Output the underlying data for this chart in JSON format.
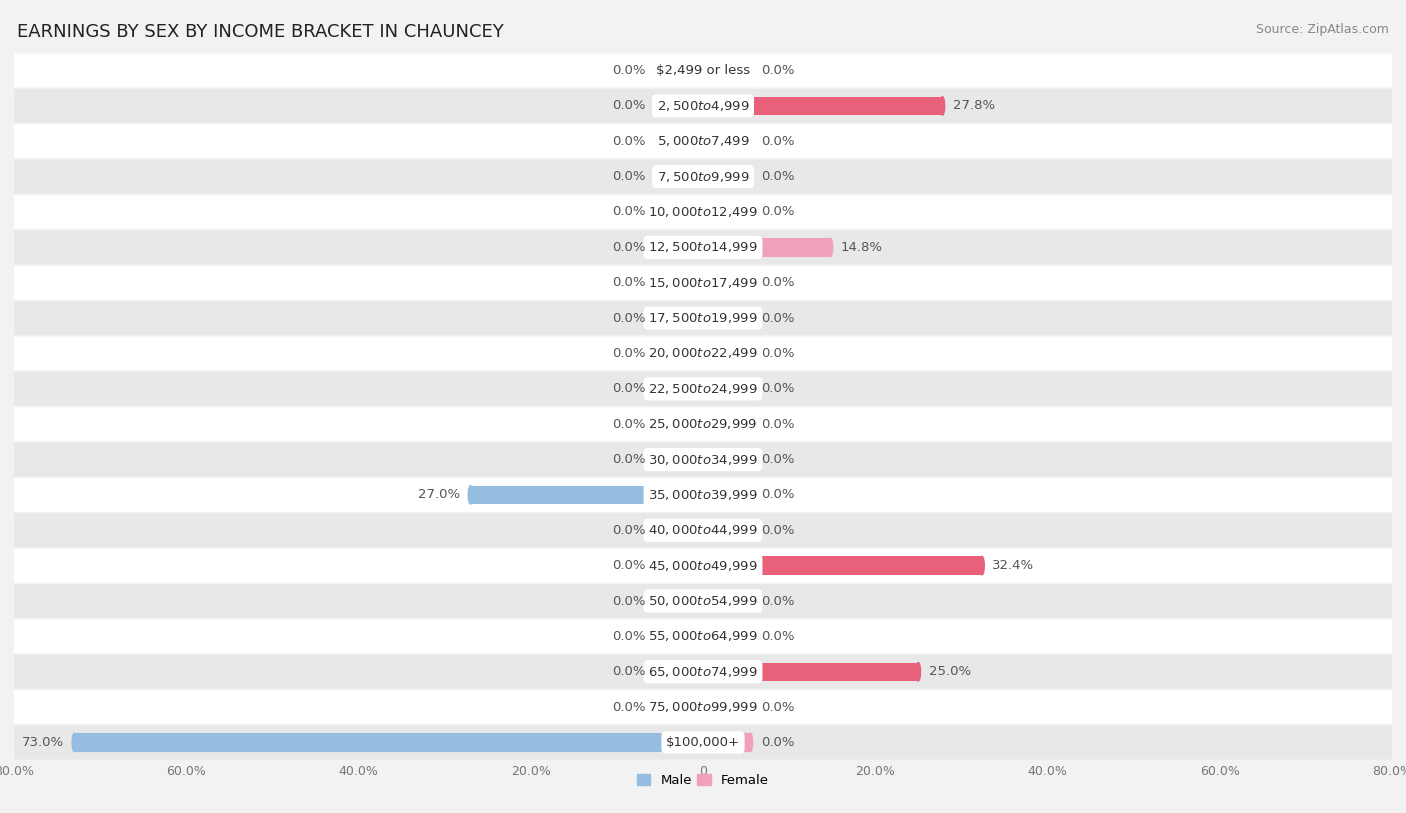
{
  "title": "EARNINGS BY SEX BY INCOME BRACKET IN CHAUNCEY",
  "source": "Source: ZipAtlas.com",
  "categories": [
    "$2,499 or less",
    "$2,500 to $4,999",
    "$5,000 to $7,499",
    "$7,500 to $9,999",
    "$10,000 to $12,499",
    "$12,500 to $14,999",
    "$15,000 to $17,499",
    "$17,500 to $19,999",
    "$20,000 to $22,499",
    "$22,500 to $24,999",
    "$25,000 to $29,999",
    "$30,000 to $34,999",
    "$35,000 to $39,999",
    "$40,000 to $44,999",
    "$45,000 to $49,999",
    "$50,000 to $54,999",
    "$55,000 to $64,999",
    "$65,000 to $74,999",
    "$75,000 to $99,999",
    "$100,000+"
  ],
  "male_values": [
    0.0,
    0.0,
    0.0,
    0.0,
    0.0,
    0.0,
    0.0,
    0.0,
    0.0,
    0.0,
    0.0,
    0.0,
    27.0,
    0.0,
    0.0,
    0.0,
    0.0,
    0.0,
    0.0,
    73.0
  ],
  "female_values": [
    0.0,
    27.8,
    0.0,
    0.0,
    0.0,
    14.8,
    0.0,
    0.0,
    0.0,
    0.0,
    0.0,
    0.0,
    0.0,
    0.0,
    32.4,
    0.0,
    0.0,
    25.0,
    0.0,
    0.0
  ],
  "male_color": "#94bde0",
  "female_color": "#f0a0b8",
  "female_color_strong": "#e8607a",
  "male_color_strong": "#94bde0",
  "axis_limit": 80.0,
  "bg_color": "#f2f2f2",
  "row_bg_white": "#ffffff",
  "row_bg_gray": "#e8e8e8",
  "title_fontsize": 13,
  "label_fontsize": 9.5,
  "cat_fontsize": 9.5,
  "tick_fontsize": 9,
  "source_fontsize": 9,
  "min_stub": 5.5,
  "bar_height": 0.52
}
